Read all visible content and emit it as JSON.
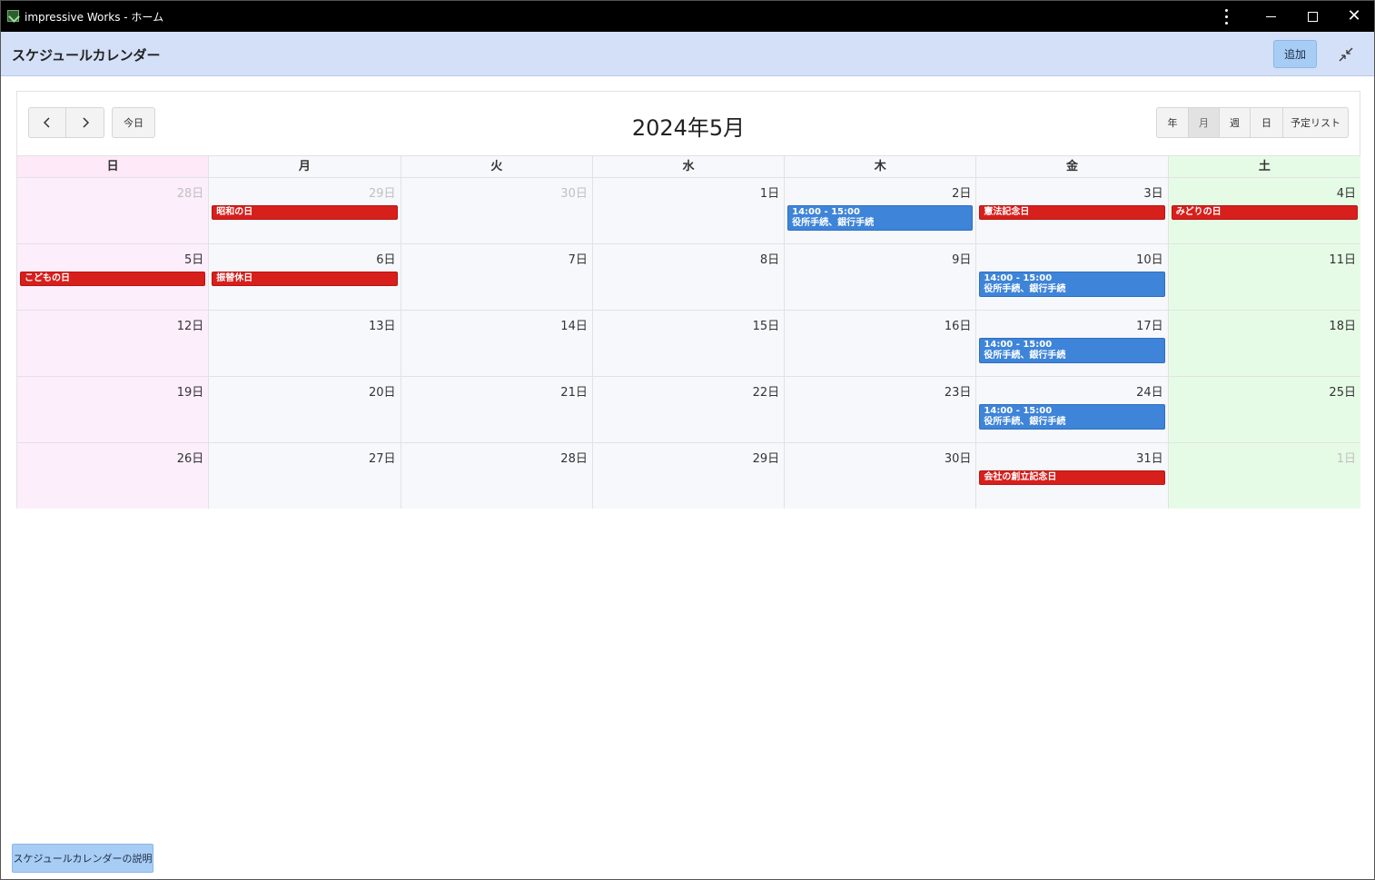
{
  "window": {
    "title": "impressive Works - ホーム"
  },
  "header": {
    "title": "スケジュールカレンダー",
    "add_label": "追加"
  },
  "calendar": {
    "title": "2024年5月",
    "today_label": "今日",
    "views": [
      "年",
      "月",
      "週",
      "日",
      "予定リスト"
    ],
    "active_view": "月",
    "weekdays": [
      "日",
      "月",
      "火",
      "水",
      "木",
      "金",
      "土"
    ],
    "weeks": [
      [
        {
          "label": "28日",
          "other": true
        },
        {
          "label": "29日",
          "other": true,
          "events": [
            {
              "type": "holiday",
              "title": "昭和の日"
            }
          ]
        },
        {
          "label": "30日",
          "other": true
        },
        {
          "label": "1日"
        },
        {
          "label": "2日",
          "events": [
            {
              "type": "task",
              "time": "14:00 - 15:00",
              "title": "役所手続、銀行手続"
            }
          ]
        },
        {
          "label": "3日",
          "events": [
            {
              "type": "holiday",
              "title": "憲法記念日"
            }
          ]
        },
        {
          "label": "4日",
          "events": [
            {
              "type": "holiday",
              "title": "みどりの日"
            }
          ]
        }
      ],
      [
        {
          "label": "5日",
          "events": [
            {
              "type": "holiday",
              "title": "こどもの日"
            }
          ]
        },
        {
          "label": "6日",
          "events": [
            {
              "type": "holiday",
              "title": "振替休日"
            }
          ]
        },
        {
          "label": "7日"
        },
        {
          "label": "8日"
        },
        {
          "label": "9日"
        },
        {
          "label": "10日",
          "events": [
            {
              "type": "task",
              "time": "14:00 - 15:00",
              "title": "役所手続、銀行手続"
            }
          ]
        },
        {
          "label": "11日"
        }
      ],
      [
        {
          "label": "12日"
        },
        {
          "label": "13日"
        },
        {
          "label": "14日"
        },
        {
          "label": "15日"
        },
        {
          "label": "16日"
        },
        {
          "label": "17日",
          "events": [
            {
              "type": "task",
              "time": "14:00 - 15:00",
              "title": "役所手続、銀行手続"
            }
          ]
        },
        {
          "label": "18日"
        }
      ],
      [
        {
          "label": "19日"
        },
        {
          "label": "20日"
        },
        {
          "label": "21日"
        },
        {
          "label": "22日"
        },
        {
          "label": "23日"
        },
        {
          "label": "24日",
          "events": [
            {
              "type": "task",
              "time": "14:00 - 15:00",
              "title": "役所手続、銀行手続"
            }
          ]
        },
        {
          "label": "25日"
        }
      ],
      [
        {
          "label": "26日"
        },
        {
          "label": "27日"
        },
        {
          "label": "28日"
        },
        {
          "label": "29日"
        },
        {
          "label": "30日"
        },
        {
          "label": "31日",
          "events": [
            {
              "type": "holiday",
              "title": "会社の創立記念日"
            }
          ]
        },
        {
          "label": "1日",
          "other": true
        }
      ]
    ]
  },
  "footer": {
    "help_label": "スケジュールカレンダーの説明"
  },
  "colors": {
    "holiday": "#d71f1c",
    "task": "#3e84d9",
    "header_bg": "#d4e0f7",
    "sunday_bg": "#fdeefc",
    "saturday_bg": "#e6fbe6"
  }
}
